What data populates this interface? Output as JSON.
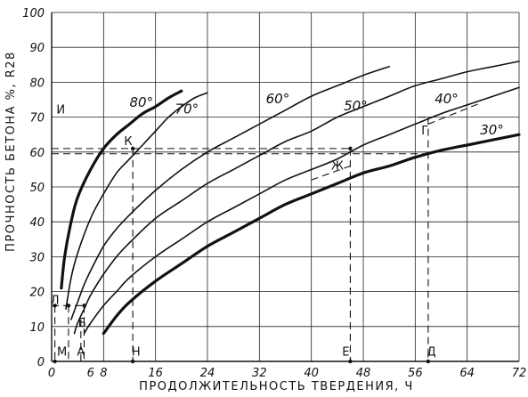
{
  "chart_data": {
    "type": "line",
    "title": "",
    "xlabel": "ПРОДОЛЖИТЕЛЬНОСТЬ ТВЕРДЕНИЯ, Ч",
    "ylabel": "ПРОЧНОСТЬ БЕТОНА %, R28",
    "xlim": [
      0,
      72
    ],
    "ylim": [
      0,
      100
    ],
    "grid": true,
    "x_ticks": [
      {
        "value": 0,
        "label": "0"
      },
      {
        "value": 6,
        "label": "6"
      },
      {
        "value": 8,
        "label": "8"
      },
      {
        "value": 16,
        "label": "16"
      },
      {
        "value": 24,
        "label": "24"
      },
      {
        "value": 32,
        "label": "32"
      },
      {
        "value": 40,
        "label": "40"
      },
      {
        "value": 48,
        "label": "48"
      },
      {
        "value": 56,
        "label": "56"
      },
      {
        "value": 64,
        "label": "64"
      },
      {
        "value": 72,
        "label": "72"
      }
    ],
    "y_ticks": [
      0,
      10,
      20,
      30,
      40,
      50,
      60,
      70,
      80,
      90,
      100
    ],
    "series": [
      {
        "name": "80°",
        "bold": true,
        "label_at": [
          12,
          73
        ],
        "points": [
          [
            1.5,
            21
          ],
          [
            2,
            30
          ],
          [
            3,
            40
          ],
          [
            4,
            47
          ],
          [
            6,
            55
          ],
          [
            8,
            61
          ],
          [
            10,
            65
          ],
          [
            12,
            68
          ],
          [
            14,
            71
          ],
          [
            16,
            73
          ],
          [
            18,
            75.5
          ],
          [
            20,
            77.5
          ]
        ]
      },
      {
        "name": "70°",
        "bold": false,
        "label_at": [
          19,
          71
        ],
        "points": [
          [
            2.2,
            15
          ],
          [
            3,
            24
          ],
          [
            4,
            31
          ],
          [
            6,
            41
          ],
          [
            8,
            48
          ],
          [
            10,
            54
          ],
          [
            12,
            58
          ],
          [
            14,
            62
          ],
          [
            16,
            66
          ],
          [
            18,
            70
          ],
          [
            20,
            73
          ],
          [
            22,
            75.5
          ],
          [
            24,
            77
          ]
        ]
      },
      {
        "name": "60°",
        "bold": false,
        "label_at": [
          33,
          74
        ],
        "points": [
          [
            3,
            12
          ],
          [
            4,
            17
          ],
          [
            5,
            22
          ],
          [
            6,
            26
          ],
          [
            8,
            33
          ],
          [
            10,
            38
          ],
          [
            12,
            42
          ],
          [
            16,
            49
          ],
          [
            20,
            55
          ],
          [
            24,
            60
          ],
          [
            28,
            64
          ],
          [
            32,
            68
          ],
          [
            36,
            72
          ],
          [
            40,
            76
          ],
          [
            44,
            79
          ],
          [
            48,
            82
          ],
          [
            52,
            84.5
          ]
        ]
      },
      {
        "name": "50°",
        "bold": false,
        "label_at": [
          45,
          72
        ],
        "points": [
          [
            3.5,
            8
          ],
          [
            4,
            11
          ],
          [
            5,
            15
          ],
          [
            6,
            19
          ],
          [
            8,
            25
          ],
          [
            10,
            30
          ],
          [
            12,
            34
          ],
          [
            16,
            41
          ],
          [
            20,
            46
          ],
          [
            24,
            51
          ],
          [
            28,
            55
          ],
          [
            32,
            59
          ],
          [
            36,
            63
          ],
          [
            40,
            66
          ],
          [
            44,
            70
          ],
          [
            48,
            73
          ],
          [
            52,
            76
          ],
          [
            56,
            79
          ],
          [
            60,
            81
          ],
          [
            64,
            83
          ],
          [
            68,
            84.5
          ],
          [
            72,
            86
          ]
        ]
      },
      {
        "name": "40°",
        "bold": false,
        "label_at": [
          59,
          74
        ],
        "points": [
          [
            5,
            8
          ],
          [
            6,
            11
          ],
          [
            8,
            16
          ],
          [
            10,
            20
          ],
          [
            12,
            24
          ],
          [
            16,
            30
          ],
          [
            20,
            35
          ],
          [
            24,
            40
          ],
          [
            28,
            44
          ],
          [
            32,
            48
          ],
          [
            36,
            52
          ],
          [
            40,
            55
          ],
          [
            44,
            58
          ],
          [
            48,
            62
          ],
          [
            52,
            65
          ],
          [
            56,
            68
          ],
          [
            60,
            71
          ],
          [
            64,
            73.5
          ],
          [
            68,
            76
          ],
          [
            72,
            78.5
          ]
        ]
      },
      {
        "name": "30°",
        "bold": true,
        "label_at": [
          66,
          65
        ],
        "points": [
          [
            8,
            8
          ],
          [
            10,
            13
          ],
          [
            12,
            17
          ],
          [
            16,
            23
          ],
          [
            20,
            28
          ],
          [
            24,
            33
          ],
          [
            28,
            37
          ],
          [
            32,
            41
          ],
          [
            36,
            45
          ],
          [
            40,
            48
          ],
          [
            44,
            51
          ],
          [
            48,
            54
          ],
          [
            52,
            56
          ],
          [
            56,
            58.5
          ],
          [
            60,
            60.5
          ],
          [
            64,
            62
          ],
          [
            68,
            63.5
          ],
          [
            72,
            65
          ]
        ]
      }
    ],
    "point_labels": [
      {
        "text": "И",
        "at": [
          1.4,
          71
        ]
      },
      {
        "text": "К",
        "at": [
          11.8,
          62
        ]
      },
      {
        "text": "Ж",
        "at": [
          44,
          55
        ]
      },
      {
        "text": "Г",
        "at": [
          57.5,
          65
        ]
      },
      {
        "text": "Б",
        "at": [
          4.7,
          10
        ]
      },
      {
        "text": "М",
        "at": [
          1.6,
          1.6
        ]
      },
      {
        "text": "А",
        "at": [
          4.5,
          1.6
        ]
      },
      {
        "text": "Н",
        "at": [
          13,
          1.6
        ]
      },
      {
        "text": "Е",
        "at": [
          45.3,
          1.6
        ]
      },
      {
        "text": "Д",
        "at": [
          58.5,
          1.6
        ]
      },
      {
        "text": "Л",
        "at": [
          0.5,
          16.5
        ]
      }
    ]
  }
}
